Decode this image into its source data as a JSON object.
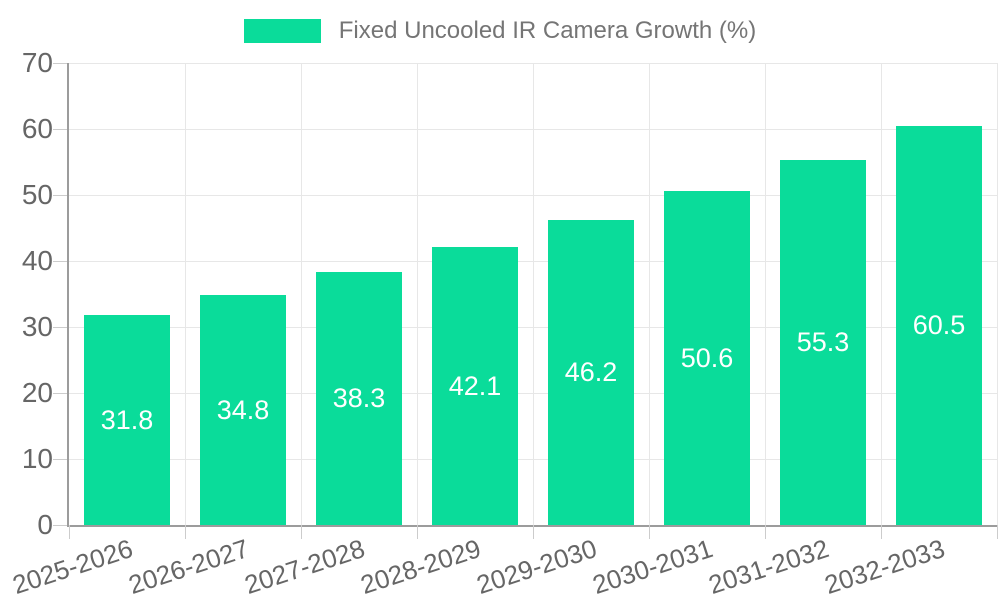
{
  "chart_data": {
    "type": "bar",
    "title": "Fixed Uncooled IR Camera Growth (%)",
    "categories": [
      "2025-2026",
      "2026-2027",
      "2027-2028",
      "2028-2029",
      "2029-2030",
      "2030-2031",
      "2031-2032",
      "2032-2033"
    ],
    "values": [
      31.8,
      34.8,
      38.3,
      42.1,
      46.2,
      50.6,
      55.3,
      60.5
    ],
    "value_labels": [
      "31.8",
      "34.8",
      "38.3",
      "42.1",
      "46.2",
      "50.6",
      "55.3",
      "60.5"
    ],
    "xlabel": "",
    "ylabel": "",
    "ylim": [
      0,
      70
    ],
    "ytick_step": 10,
    "y_ticks": [
      0,
      10,
      20,
      30,
      40,
      50,
      60,
      70
    ],
    "grid": true,
    "legend_position": "top",
    "colors": {
      "bar": "#0adc9a",
      "value_label": "#ffffff",
      "axis_text": "#666666",
      "legend_text": "#757575",
      "gridline": "#e7e7e7",
      "axis_line": "#9c9c9c",
      "tick": "#cccccc"
    }
  }
}
